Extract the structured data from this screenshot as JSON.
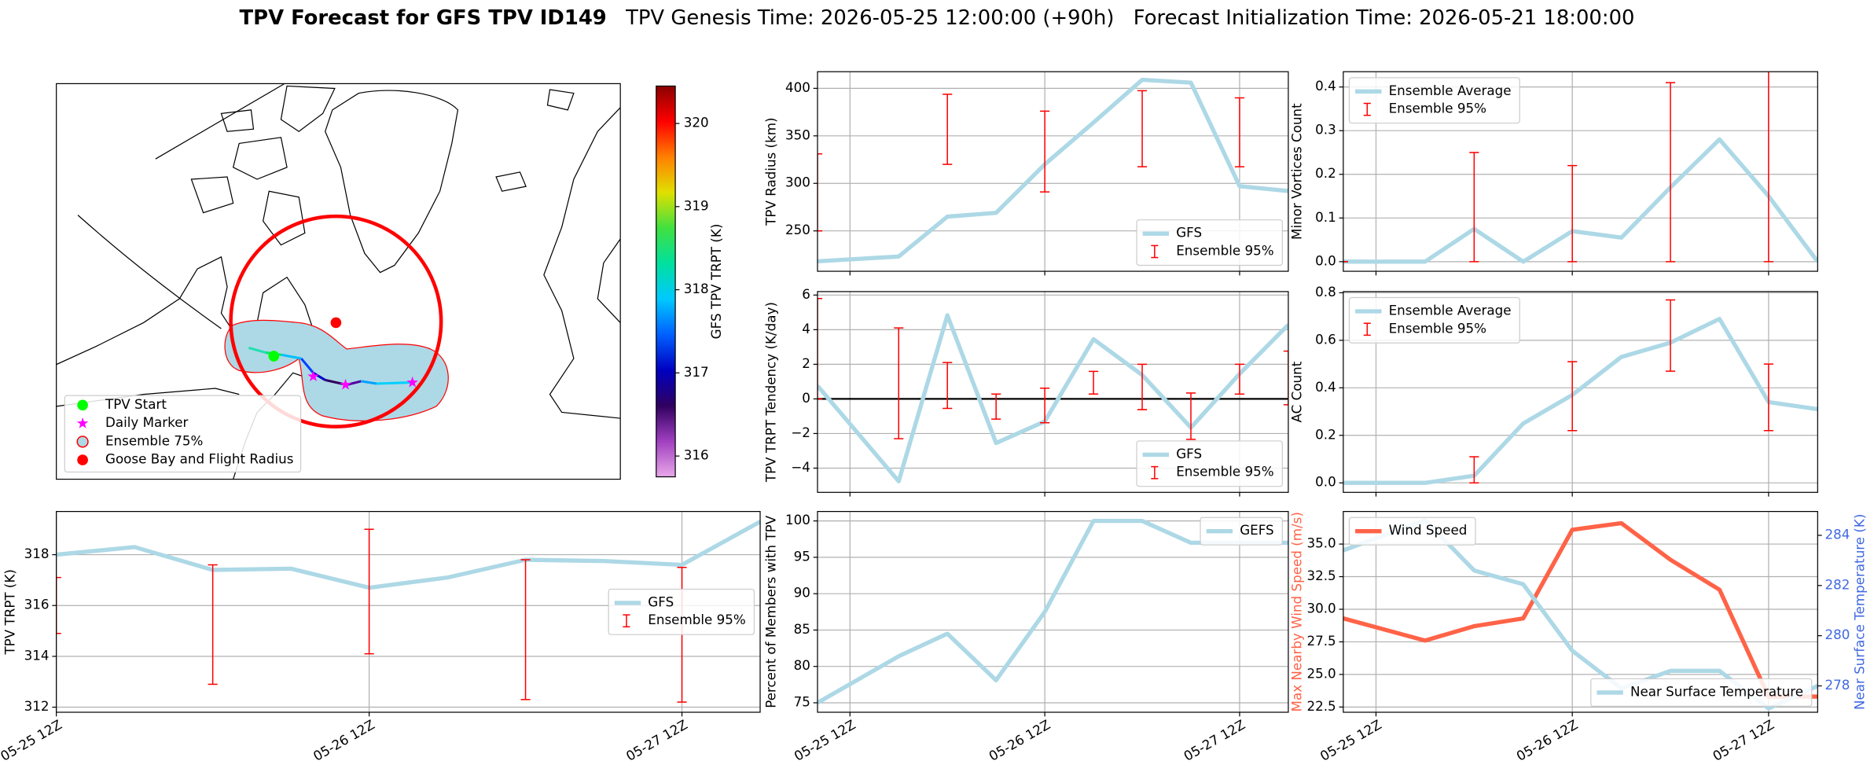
{
  "figure_title": [
    "TPV Forecast for GFS TPV ID149",
    "TPV Genesis Time: 2026-05-25 12:00:00 (+90h)",
    "Forecast Initialization Time: 2026-05-21 18:00:00"
  ],
  "chart_data": [
    {
      "type": "map",
      "legend": [
        {
          "name": "TPV Start",
          "marker": "circle",
          "color": "lime"
        },
        {
          "name": "Daily Marker",
          "marker": "star",
          "color": "magenta"
        },
        {
          "name": "Ensemble 75%",
          "marker": "circle",
          "color": "lightblue",
          "edgecolor": "red"
        },
        {
          "name": "Goose Bay and Flight Radius",
          "marker": "circle",
          "color": "red"
        }
      ],
      "colorbar": {
        "label": "GFS TPV TRPT (K)",
        "lim": [
          315.75,
          320.45
        ],
        "ticks": [
          316,
          317,
          318,
          319,
          320
        ],
        "colors": [
          "#e8a8e8",
          "#a040c0",
          "#300060",
          "#0000c0",
          "#0060ff",
          "#00c8ff",
          "#00e0a0",
          "#40e040",
          "#e0e000",
          "#ff8000",
          "#ff0000",
          "#8b0000"
        ]
      }
    },
    {
      "type": "line",
      "x": [
        0,
        6,
        12,
        18,
        24,
        30,
        36,
        42,
        48,
        54
      ],
      "xlim": [
        0,
        54
      ],
      "xticks": [
        {
          "value": 0,
          "label": "05-25 12Z"
        },
        {
          "value": 24,
          "label": "05-26 12Z"
        },
        {
          "value": 48,
          "label": "05-27 12Z"
        }
      ],
      "ylim": [
        311.8,
        319.7
      ],
      "yticks": [
        312,
        314,
        316,
        318
      ],
      "ylabel": "TPV TRPT (K)",
      "grid": true,
      "legend": "center right",
      "series": [
        {
          "name": "GFS",
          "type": "line",
          "color": "lightblue",
          "values": [
            318.0,
            318.3,
            317.4,
            317.45,
            316.7,
            317.1,
            317.8,
            317.75,
            317.6,
            319.3
          ]
        },
        {
          "name": "Ensemble 95%",
          "type": "errorbar",
          "color": "red",
          "x": [
            0,
            12,
            24,
            36,
            48
          ],
          "low": [
            314.9,
            312.9,
            314.1,
            312.3,
            312.2
          ],
          "high": [
            317.1,
            317.6,
            319.0,
            317.8,
            317.5
          ]
        }
      ]
    },
    {
      "type": "line",
      "x": [
        -4,
        6,
        12,
        18,
        24,
        30,
        36,
        42,
        48,
        54
      ],
      "xlim": [
        -4,
        54
      ],
      "xticks": [
        0,
        24,
        48
      ],
      "ylim": [
        207.5,
        417.5
      ],
      "yticks": [
        250,
        300,
        350,
        400
      ],
      "ylabel": "TPV Radius (km)",
      "grid": true,
      "legend": "lower right",
      "series": [
        {
          "name": "GFS",
          "type": "line",
          "color": "lightblue",
          "values": [
            218,
            223,
            265,
            269,
            320,
            364,
            409,
            406,
            297,
            292
          ]
        },
        {
          "name": "Ensemble 95%",
          "type": "errorbar",
          "color": "red",
          "x": [
            -4,
            12,
            24,
            36,
            48
          ],
          "low": [
            250,
            320,
            291,
            317.5,
            317.5
          ],
          "high": [
            331,
            393.75,
            376,
            397.5,
            390
          ]
        }
      ]
    },
    {
      "type": "line",
      "x": [
        -4,
        6,
        12,
        18,
        24,
        30,
        36,
        42,
        48,
        54
      ],
      "xlim": [
        -4,
        54
      ],
      "xticks": [
        0,
        24,
        48
      ],
      "ylim": [
        -5.4,
        6.2
      ],
      "yticks": [
        {
          "value": -4,
          "label": "−4"
        },
        {
          "value": -2,
          "label": "−2"
        },
        0,
        2,
        4,
        6
      ],
      "hline": 0,
      "ylabel": "TPV TRPT Tendency (K/day)",
      "grid": true,
      "legend": "lower right",
      "series": [
        {
          "name": "GFS",
          "type": "line",
          "color": "lightblue",
          "values": [
            0.76,
            -4.76,
            4.83,
            -2.55,
            -1.3,
            3.45,
            1.38,
            -1.66,
            1.45,
            4.28
          ]
        },
        {
          "name": "Ensemble 95%",
          "type": "errorbar",
          "color": "red",
          "x": [
            -4,
            6,
            12,
            18,
            24,
            30,
            36,
            42,
            48,
            54
          ],
          "low": [
            0.0,
            -2.3,
            -0.55,
            -1.17,
            -1.38,
            0.28,
            -0.62,
            -2.34,
            0.28,
            -0.34
          ],
          "high": [
            5.8,
            4.1,
            2.1,
            0.28,
            0.62,
            1.59,
            2.0,
            0.34,
            2.0,
            2.76
          ]
        }
      ]
    },
    {
      "type": "line",
      "x": [
        -4,
        6,
        12,
        18,
        24,
        30,
        36,
        42,
        48,
        54
      ],
      "xlim": [
        -4,
        54
      ],
      "xticks": [
        {
          "value": 0,
          "label": "05-25 12Z"
        },
        {
          "value": 24,
          "label": "05-26 12Z"
        },
        {
          "value": 48,
          "label": "05-27 12Z"
        }
      ],
      "ylim": [
        73.7,
        101.3
      ],
      "yticks": [
        75,
        80,
        85,
        90,
        95,
        100
      ],
      "ylabel": "Percent of Members with TPV",
      "grid": true,
      "legend": "upper right",
      "series": [
        {
          "name": "GEFS",
          "type": "line",
          "color": "lightblue",
          "values": [
            75,
            81.4,
            84.5,
            78.1,
            87.5,
            100,
            100,
            97,
            97,
            97
          ]
        }
      ]
    },
    {
      "type": "line",
      "x": [
        -4,
        6,
        12,
        18,
        24,
        30,
        36,
        42,
        48,
        54
      ],
      "xlim": [
        -4,
        54
      ],
      "xticks": [
        0,
        24,
        48
      ],
      "ylim": [
        -0.022,
        0.435
      ],
      "yticks": [
        {
          "value": 0,
          "label": "0.0"
        },
        0.1,
        0.2,
        0.3,
        0.4
      ],
      "ylabel": "Minor Vortices Count",
      "grid": true,
      "legend": "upper left",
      "series": [
        {
          "name": "Ensemble Average",
          "type": "line",
          "color": "lightblue",
          "values": [
            0,
            0,
            0.075,
            0,
            0.07,
            0.055,
            0.17,
            0.28,
            0.15,
            0
          ]
        },
        {
          "name": "Ensemble 95%",
          "type": "errorbar",
          "color": "red",
          "x": [
            -4,
            12,
            24,
            36,
            48
          ],
          "low": [
            0,
            0,
            0,
            0,
            0
          ],
          "high": [
            0,
            0.25,
            0.22,
            0.41,
            0.45
          ]
        }
      ]
    },
    {
      "type": "line",
      "x": [
        -4,
        6,
        12,
        18,
        24,
        30,
        36,
        42,
        48,
        54
      ],
      "xlim": [
        -4,
        54
      ],
      "xticks": [
        0,
        24,
        48
      ],
      "ylim": [
        -0.04,
        0.805
      ],
      "yticks": [
        {
          "value": 0,
          "label": "0.0"
        },
        0.2,
        0.4,
        0.6,
        0.8
      ],
      "ylabel": "AC Count",
      "grid": true,
      "legend": "upper left",
      "series": [
        {
          "name": "Ensemble Average",
          "type": "line",
          "color": "lightblue",
          "values": [
            0,
            0,
            0.03,
            0.25,
            0.37,
            0.53,
            0.59,
            0.69,
            0.34,
            0.31
          ]
        },
        {
          "name": "Ensemble 95%",
          "type": "errorbar",
          "color": "red",
          "x": [
            12,
            24,
            36,
            48
          ],
          "low": [
            0,
            0.22,
            0.47,
            0.22
          ],
          "high": [
            0.11,
            0.51,
            0.77,
            0.5
          ]
        }
      ]
    },
    {
      "type": "line",
      "x": [
        -4,
        6,
        12,
        18,
        24,
        30,
        36,
        42,
        48,
        54
      ],
      "xlim": [
        -4,
        54
      ],
      "xticks": [
        {
          "value": 0,
          "label": "05-25 12Z"
        },
        {
          "value": 24,
          "label": "05-26 12Z"
        },
        {
          "value": 48,
          "label": "05-27 12Z"
        }
      ],
      "ylim": [
        22.1,
        37.5
      ],
      "yticks": [
        22.5,
        {
          "value": 25,
          "label": "25.0"
        },
        27.5,
        {
          "value": 30,
          "label": "30.0"
        },
        32.5,
        {
          "value": 35,
          "label": "35.0"
        }
      ],
      "ylabel": "Max Nearby Wind Speed (m/s)",
      "ylabel_color": "tomato",
      "y2lim": [
        276.95,
        284.95
      ],
      "y2ticks": [
        278,
        280,
        282,
        284
      ],
      "y2label": "Near Surface Temperature (K)",
      "y2label_color": "royalblue",
      "grid": true,
      "legend": "upper left",
      "legend2": "lower right",
      "series": [
        {
          "name": "Wind Speed",
          "type": "line",
          "color": "tomato",
          "values": [
            29.3,
            27.6,
            28.7,
            29.3,
            36.1,
            36.6,
            33.8,
            31.5,
            23.3,
            23.3
          ]
        },
        {
          "name": "Near Surface Temperature",
          "type": "line",
          "color": "lightblue",
          "axis": "y2",
          "values": [
            283.4,
            284.6,
            282.6,
            282.05,
            279.4,
            277.9,
            278.6,
            278.6,
            277.1,
            278.0
          ]
        }
      ]
    }
  ]
}
